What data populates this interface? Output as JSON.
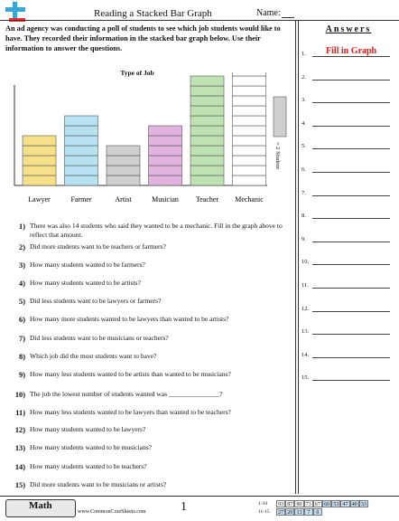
{
  "header": {
    "title": "Reading a Stacked Bar Graph",
    "name_label": "Name:"
  },
  "intro": "An ad agency was conducting a poll of students to see which job students would like to have. They recorded their information in the stacked bar graph below. Use their information to answer the questions.",
  "chart_data": {
    "type": "bar",
    "title": "Type of Job",
    "categories": [
      "Lawyer",
      "Farmer",
      "Artist",
      "Musician",
      "Teacher",
      "Mechanic"
    ],
    "values": [
      5,
      7,
      4,
      6,
      11,
      12
    ],
    "unit_per_block": 2,
    "legend_label": "= 2 Student",
    "colors": [
      "#f7e08a",
      "#b6e2f2",
      "#cfcfcf",
      "#e3b3e0",
      "#bfe2b2",
      "#ffffff"
    ],
    "legend_color": "#cfcfcf",
    "legend_placement": "right"
  },
  "questions": [
    {
      "num": "1)",
      "text": "There was also 14 students who said they wanted to be a mechanic. Fill in the graph above to reflect that amount."
    },
    {
      "num": "2)",
      "text": "Did more students want to be teachers or farmers?"
    },
    {
      "num": "3)",
      "text": "How many students wanted to be farmers?"
    },
    {
      "num": "4)",
      "text": "How many students wanted to be artists?"
    },
    {
      "num": "5)",
      "text": "Did less students want to be lawyers or farmers?"
    },
    {
      "num": "6)",
      "text": "How many more students wanted to be lawyers than wanted to be artists?"
    },
    {
      "num": "7)",
      "text": "Did less students want to be musicians or teachers?"
    },
    {
      "num": "8)",
      "text": "Which job did the most students want to have?"
    },
    {
      "num": "9)",
      "text": "How many less students wanted to be artists than wanted to be musicians?"
    },
    {
      "num": "10)",
      "text": "The job the lowest number of students wanted was _______________?"
    },
    {
      "num": "11)",
      "text": "How many less students wanted to be lawyers than wanted to be teachers?"
    },
    {
      "num": "12)",
      "text": "How many students wanted to be lawyers?"
    },
    {
      "num": "13)",
      "text": "How many students wanted to be musicians?"
    },
    {
      "num": "14)",
      "text": "How many students wanted to be teachers?"
    },
    {
      "num": "15)",
      "text": "Did more students want to be musicians or artists?"
    }
  ],
  "answers": {
    "title": "Answers",
    "first_answer": "Fill in Graph",
    "items": [
      "1.",
      "2.",
      "3.",
      "4.",
      "5.",
      "6.",
      "7.",
      "8.",
      "9.",
      "10.",
      "11.",
      "12.",
      "13.",
      "14.",
      "15."
    ]
  },
  "footer": {
    "subject": "Math",
    "site": "www.CommonCoreSheets.com",
    "page": "1",
    "score_rows": [
      {
        "label": "1-10",
        "cells": [
          "93",
          "87",
          "80",
          "73",
          "67",
          "60",
          "53",
          "47",
          "40",
          "33"
        ]
      },
      {
        "label": "11-15",
        "cells": [
          "27",
          "20",
          "13",
          "7",
          "0"
        ]
      }
    ],
    "highlight_color": "#c6dff2"
  }
}
